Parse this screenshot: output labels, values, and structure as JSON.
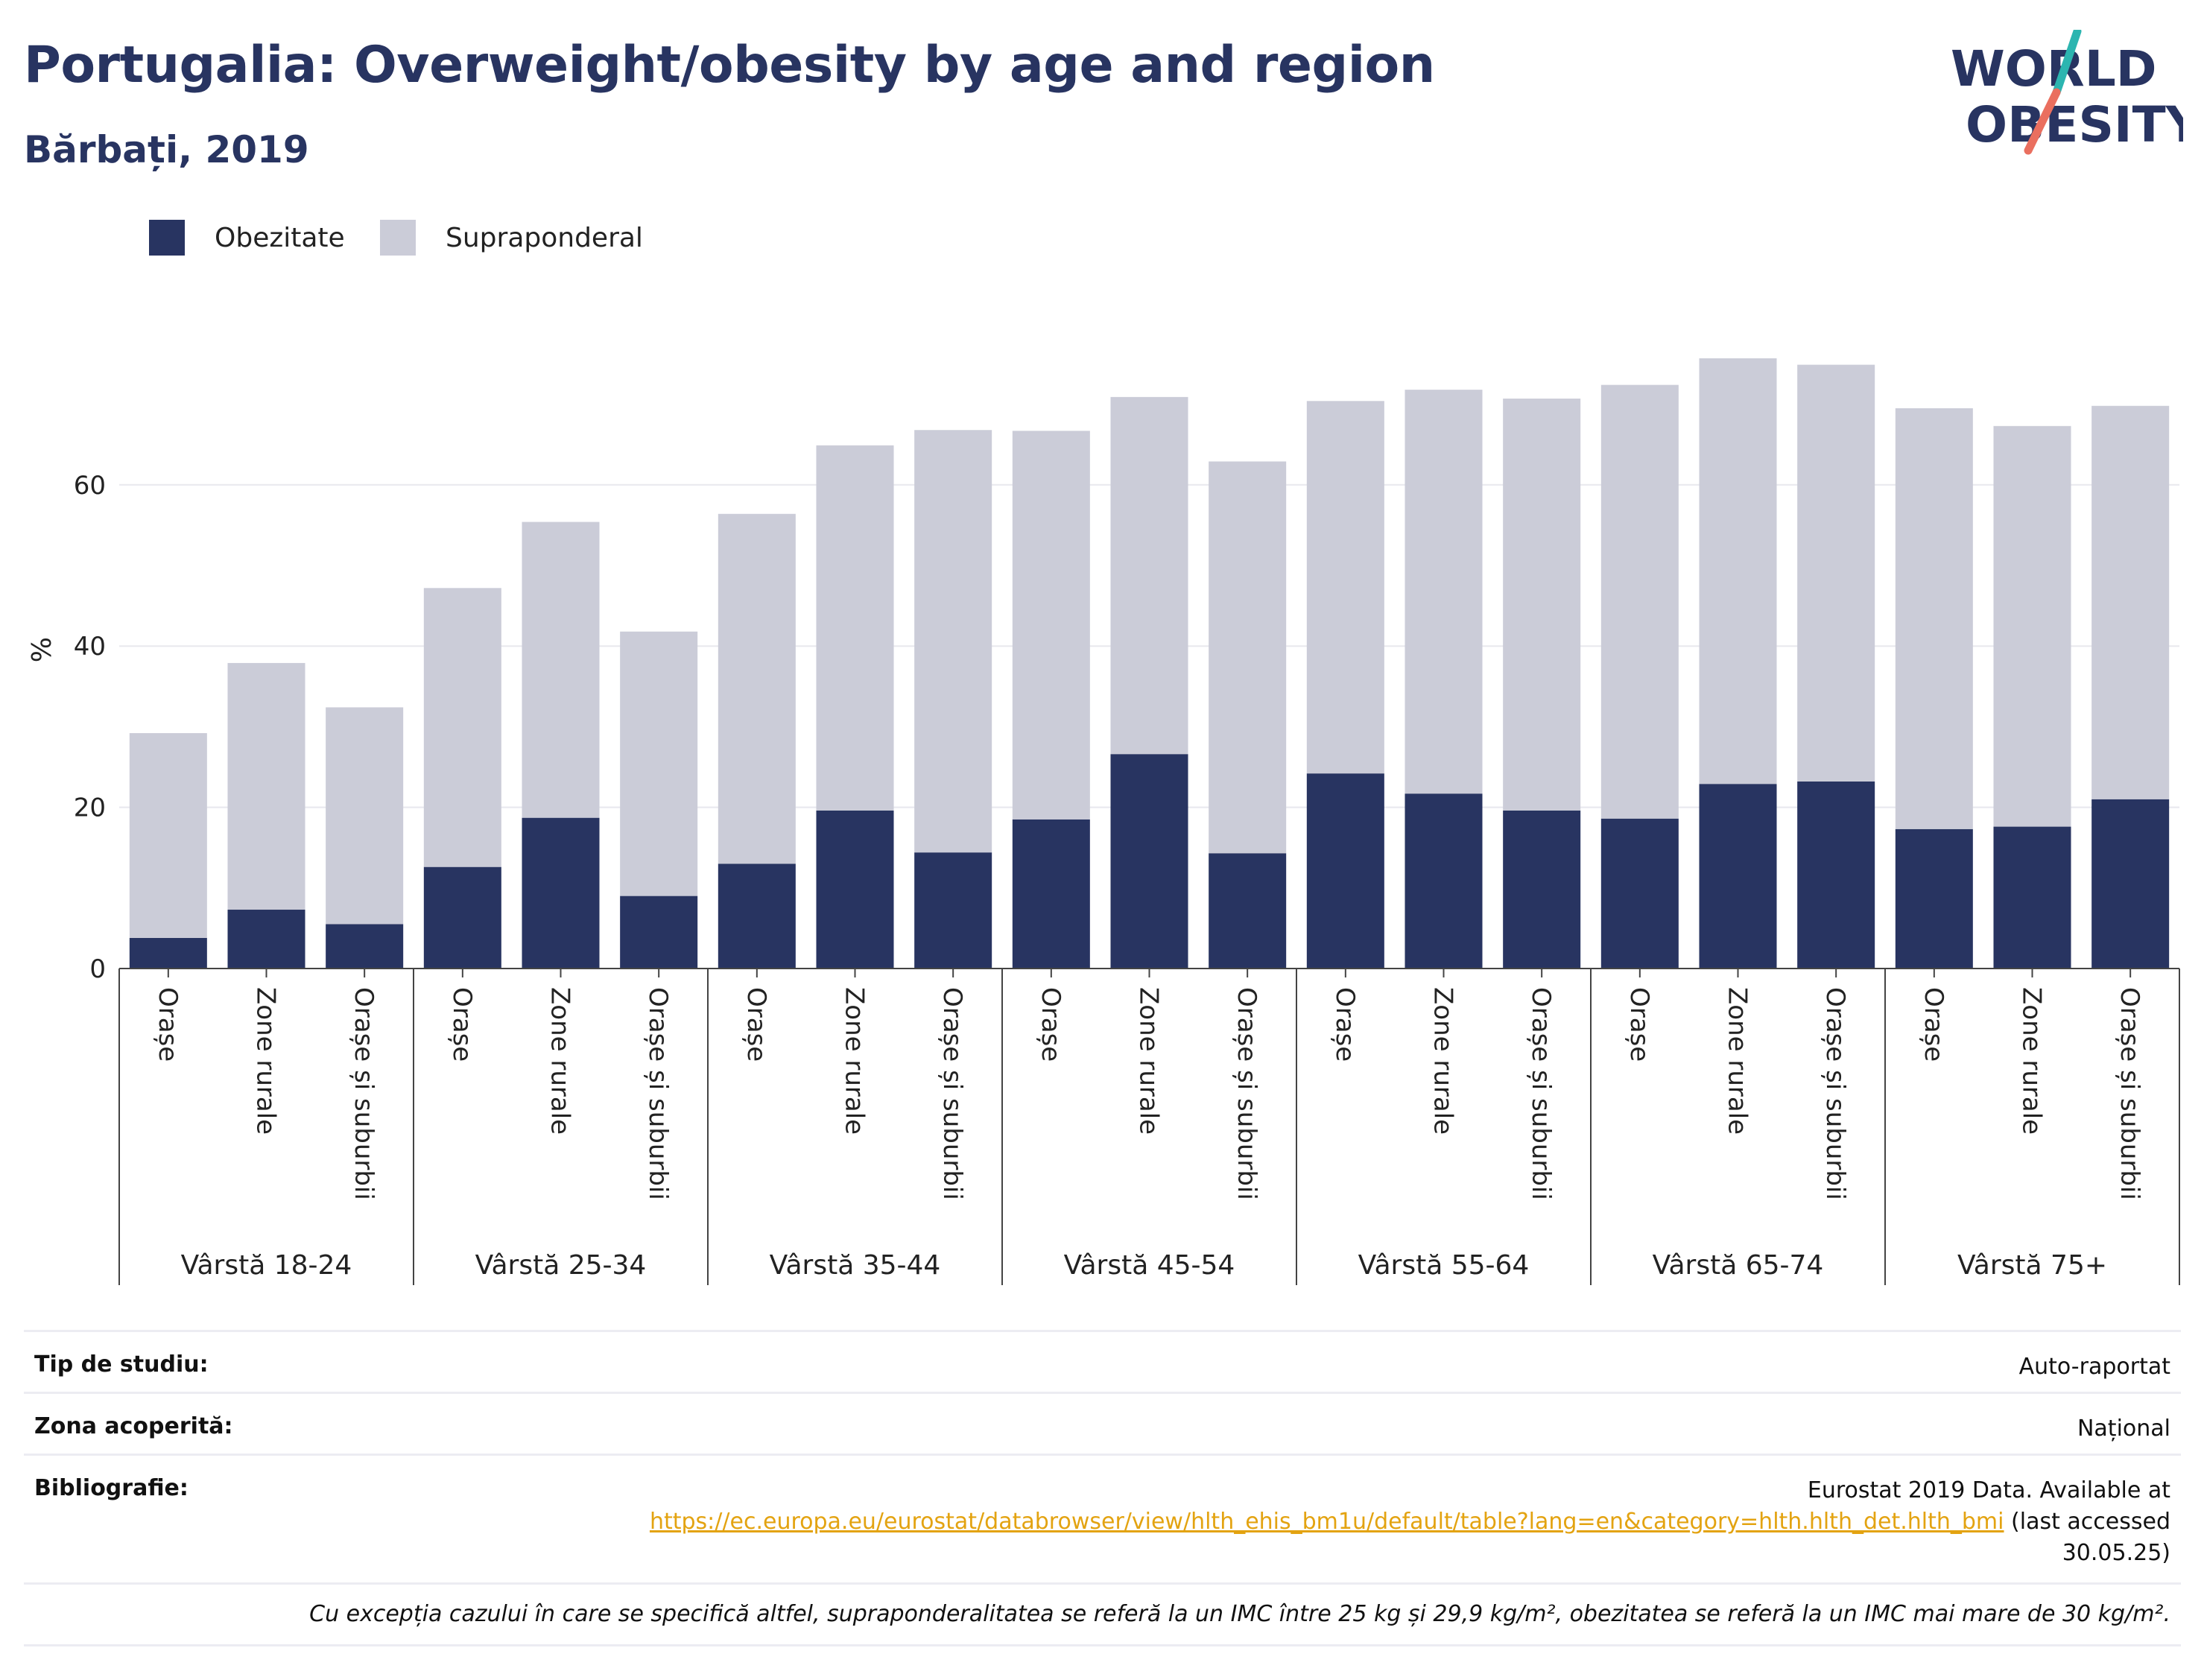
{
  "header": {
    "title": "Portugalia: Overweight/obesity by age and region",
    "subtitle": "Bărbați, 2019"
  },
  "logo": {
    "line1": "WORLD",
    "line2": "OBESITY"
  },
  "legend": [
    {
      "label": "Obezitate",
      "color": "#283461"
    },
    {
      "label": "Supraponderal",
      "color": "#cbccd8"
    }
  ],
  "chart_data": {
    "type": "bar",
    "stacked": true,
    "ylabel": "%",
    "ylim": [
      0,
      80
    ],
    "yticks": [
      0,
      20,
      40,
      60
    ],
    "grid": true,
    "legend_position": "top-left",
    "groups": [
      "Vârstă 18-24",
      "Vârstă 25-34",
      "Vârstă 35-44",
      "Vârstă 45-54",
      "Vârstă 55-64",
      "Vârstă 65-74",
      "Vârstă 75+"
    ],
    "subcategories": [
      "Orașe",
      "Zone rurale",
      "Orașe și suburbii"
    ],
    "series": [
      {
        "name": "Obezitate",
        "color": "#283461",
        "values": [
          3.8,
          7.3,
          5.5,
          12.6,
          18.7,
          9.0,
          13.0,
          19.6,
          14.4,
          18.5,
          26.6,
          14.3,
          24.2,
          21.7,
          19.6,
          18.6,
          22.9,
          23.2,
          17.3,
          17.6,
          21.0
        ]
      },
      {
        "name": "Supraponderal",
        "color": "#cbccd8",
        "values": [
          25.4,
          30.6,
          26.9,
          34.6,
          36.7,
          32.8,
          43.4,
          45.3,
          52.4,
          48.2,
          44.3,
          48.6,
          46.2,
          50.1,
          51.1,
          53.8,
          52.8,
          51.7,
          52.2,
          49.7,
          48.8
        ]
      }
    ]
  },
  "info": {
    "study_type_label": "Tip de studiu:",
    "study_type_value": "Auto-raportat",
    "coverage_label": "Zona acoperită:",
    "coverage_value": "Național",
    "bibliography_label": "Bibliografie:",
    "bibliography_line1": "Eurostat 2019 Data. Available at",
    "bibliography_link": "https://ec.europa.eu/eurostat/databrowser/view/hlth_ehis_bm1u/default/table?lang=en&category=hlth.hlth_det.hlth_bmi",
    "bibliography_after_link": "(last accessed",
    "bibliography_line3": "30.05.25)",
    "footnote": "Cu excepția cazului în care se specifică altfel, supraponderalitatea se referă la un IMC între 25 kg și 29,9 kg/m², obezitatea se referă la un IMC mai mare de 30 kg/m²."
  }
}
